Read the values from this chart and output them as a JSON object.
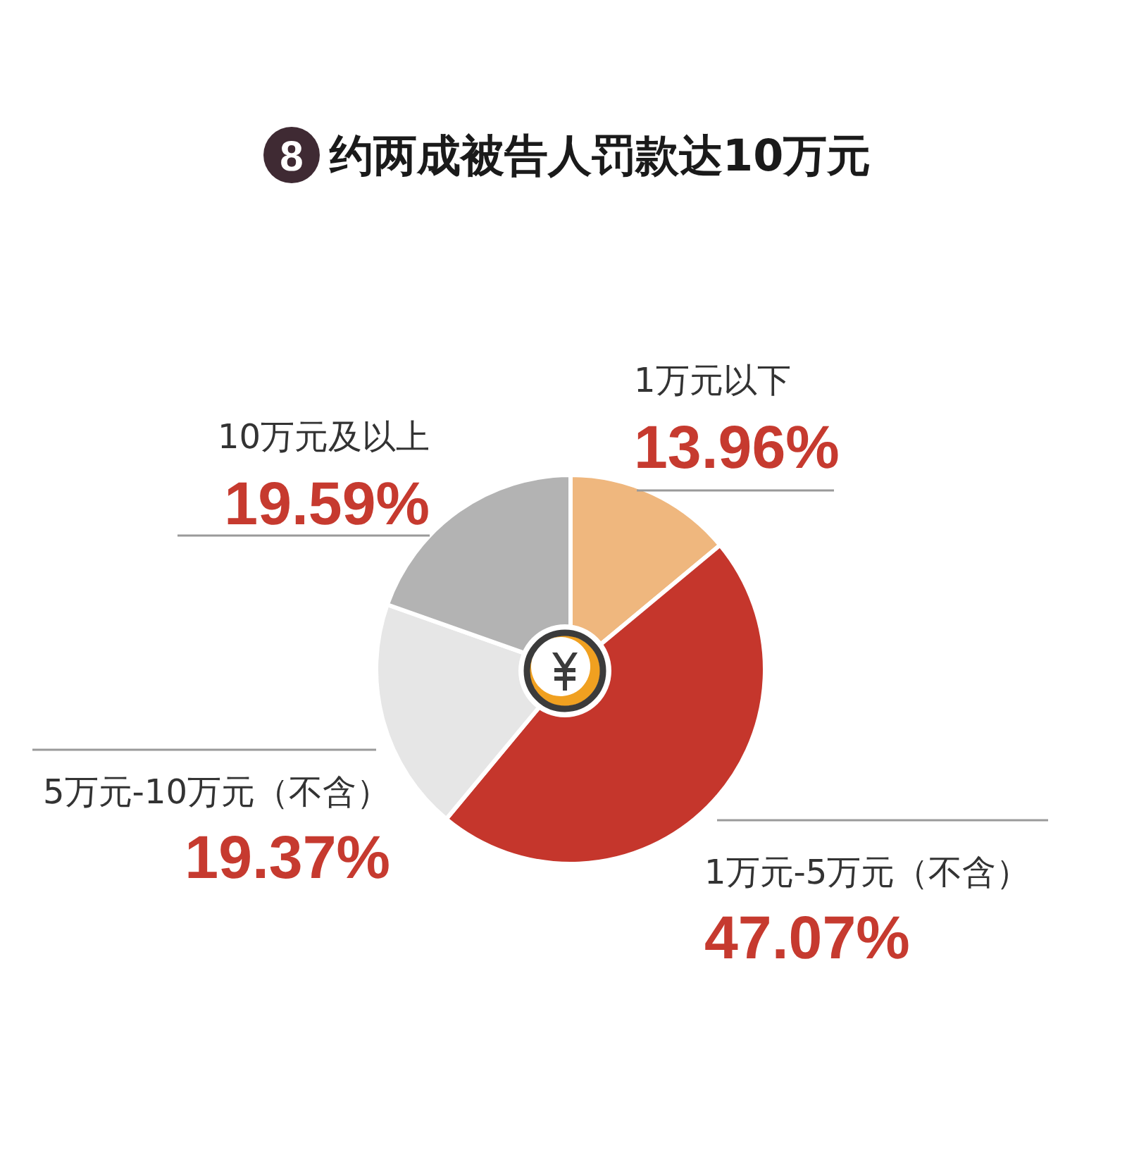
{
  "chart_data": {
    "type": "pie",
    "title": "约两成被告人罚款达10万元",
    "annotations": [
      "8"
    ],
    "categories": [
      "1万元以下",
      "1万元-5万元（不含）",
      "5万元-10万元（不含）",
      "10万元及以上"
    ],
    "values": [
      13.96,
      47.07,
      19.37,
      19.59
    ],
    "colors": [
      "#efb77e",
      "#c5362c",
      "#e6e6e6",
      "#b3b3b3"
    ],
    "value_labels": [
      "13.96%",
      "47.07%",
      "19.37%",
      "19.59%"
    ]
  }
}
